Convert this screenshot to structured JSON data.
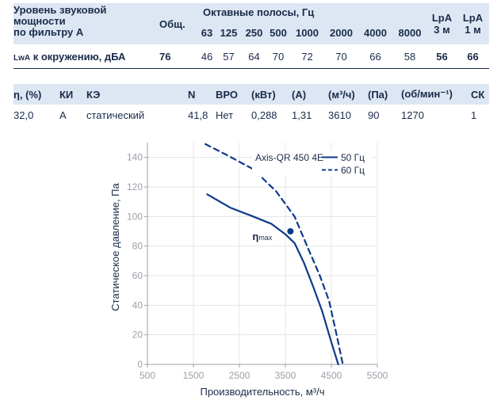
{
  "sound_table": {
    "label_lines": [
      "Уровень звуковой",
      "мощности",
      "по фильтру А"
    ],
    "total_header": "Общ.",
    "octave_header": "Октавные полосы, Гц",
    "bands": [
      "63",
      "125",
      "250",
      "500",
      "1000",
      "2000",
      "4000",
      "8000"
    ],
    "lpa3_top": "LpA",
    "lpa3_bottom": "3 м",
    "lpa1_top": "LpA",
    "lpa1_bottom": "1 м",
    "row_label_sub": "LwA",
    "row_label_rest": " к окружению, дБА",
    "total": "76",
    "values": [
      "46",
      "57",
      "64",
      "70",
      "72",
      "70",
      "66",
      "58"
    ],
    "lpa3": "56",
    "lpa1": "66"
  },
  "spec_table": {
    "headers": [
      "η, (%)",
      "КИ",
      "КЭ",
      "N",
      "ВРО",
      "(кВт)",
      "(А)",
      "(м³/ч)",
      "(Па)",
      "(об/мин⁻¹)",
      "СК"
    ],
    "values": [
      "32,0",
      "A",
      "статический",
      "41,8",
      "Нет",
      "0,288",
      "1,31",
      "3610",
      "90",
      "1270",
      "1"
    ]
  },
  "chart_data": {
    "type": "line",
    "xlabel": "Производительность, м³/ч",
    "ylabel": "Статическое давление, Па",
    "xlim": [
      500,
      5500
    ],
    "ylim": [
      0,
      150
    ],
    "xticks": [
      "500",
      "1500",
      "2500",
      "3500",
      "4500",
      "5500"
    ],
    "yticks": [
      "0",
      "20",
      "40",
      "60",
      "80",
      "100",
      "120",
      "140"
    ],
    "legend_title": "Axis-QR 450 4E",
    "legend_position": "top-right",
    "series": [
      {
        "name": "50 Гц",
        "style": "solid",
        "x": [
          1800,
          2300,
          2800,
          3200,
          3500,
          3700,
          3900,
          4100,
          4300,
          4500,
          4650
        ],
        "y": [
          115,
          106,
          100,
          95,
          88,
          82,
          69,
          53,
          36,
          15,
          0
        ]
      },
      {
        "name": "60 Гц",
        "style": "dashed",
        "x": [
          1760,
          2200,
          2800,
          3300,
          3700,
          4000,
          4250,
          4450,
          4600,
          4750
        ],
        "y": [
          149,
          142,
          132,
          117,
          100,
          78,
          60,
          43,
          22,
          0
        ]
      }
    ],
    "marker": {
      "label": "ηmax",
      "label_main": "η",
      "label_sub": "max",
      "x": 3610,
      "y": 90
    },
    "color": "#0d3a8a"
  }
}
